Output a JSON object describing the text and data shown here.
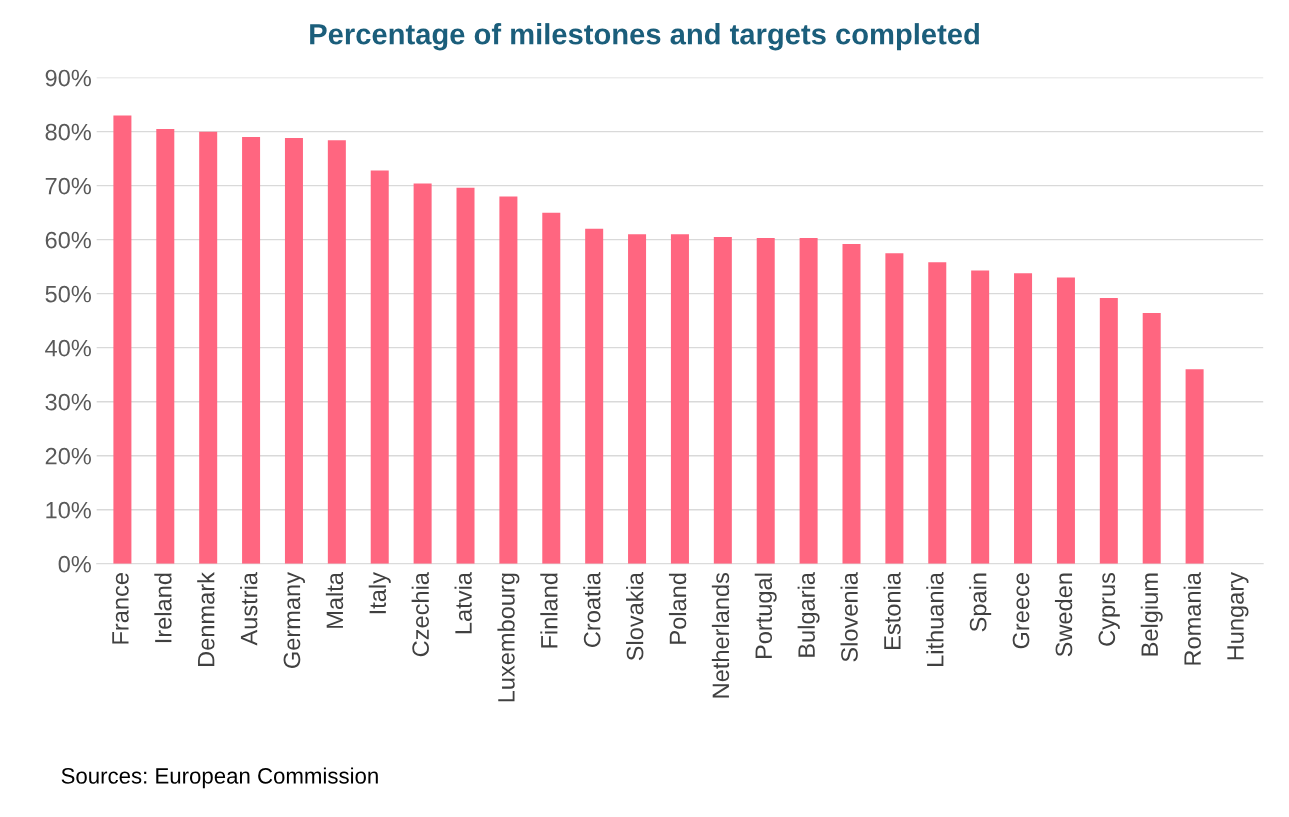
{
  "chart_data": {
    "type": "bar",
    "title": "Percentage of milestones and targets completed",
    "categories": [
      "France",
      "Ireland",
      "Denmark",
      "Austria",
      "Germany",
      "Malta",
      "Italy",
      "Czechia",
      "Latvia",
      "Luxembourg",
      "Finland",
      "Croatia",
      "Slovakia",
      "Poland",
      "Netherlands",
      "Portugal",
      "Bulgaria",
      "Slovenia",
      "Estonia",
      "Lithuania",
      "Spain",
      "Greece",
      "Sweden",
      "Cyprus",
      "Belgium",
      "Romania",
      "Hungary"
    ],
    "values": [
      83,
      80.5,
      80,
      79,
      78.8,
      78.4,
      72.8,
      70.4,
      69.6,
      68,
      65,
      62,
      61,
      61,
      60.5,
      60.3,
      60.3,
      59.2,
      57.5,
      55.8,
      54.3,
      53.8,
      53,
      49.2,
      46.4,
      36,
      0
    ],
    "color": "#ff6680",
    "ylim": [
      0,
      90
    ],
    "yticks": [
      {
        "value": 0,
        "label": "0%"
      },
      {
        "value": 10,
        "label": "10%"
      },
      {
        "value": 20,
        "label": "20%"
      },
      {
        "value": 30,
        "label": "30%"
      },
      {
        "value": 40,
        "label": "40%"
      },
      {
        "value": 50,
        "label": "50%"
      },
      {
        "value": 60,
        "label": "60%"
      },
      {
        "value": 70,
        "label": "70%"
      },
      {
        "value": 80,
        "label": "80%"
      },
      {
        "value": 90,
        "label": "90%"
      }
    ],
    "grid": "y",
    "annotations": [
      "Sources: European Commission"
    ]
  }
}
